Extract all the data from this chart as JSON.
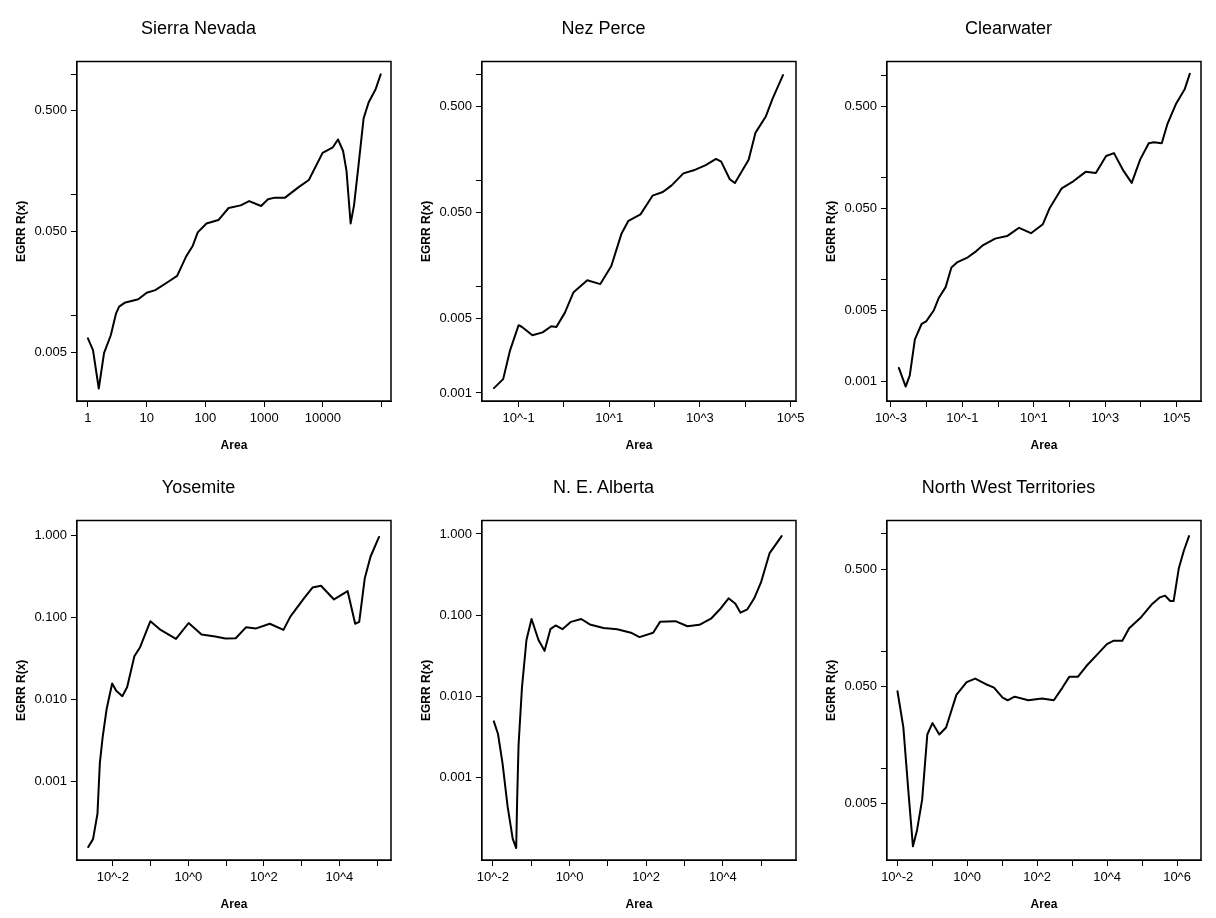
{
  "chart_data": [
    {
      "type": "line",
      "title": "Sierra Nevada",
      "xlabel": "Area",
      "ylabel": "EGRR R(x)",
      "log": "xy",
      "grid": false,
      "legend": false,
      "marker": "none",
      "xlim": [
        0.65,
        144000
      ],
      "ylim": [
        0.00197,
        1.27
      ],
      "xticks": [
        1,
        10,
        100,
        1000,
        10000,
        {
          "value": 100000,
          "label": null
        }
      ],
      "yticks": [
        {
          "value": 0.005,
          "label": "0.005"
        },
        {
          "value": 0.01,
          "label": null
        },
        {
          "value": 0.05,
          "label": "0.050"
        },
        {
          "value": 0.1,
          "label": null
        },
        {
          "value": 0.5,
          "label": "0.500"
        },
        {
          "value": 1,
          "label": null
        }
      ],
      "series": [
        {
          "color": "#000000",
          "x": [
            1.0,
            1.22,
            1.53,
            1.88,
            2.45,
            3.0,
            3.4,
            4.2,
            7.2,
            10,
            14,
            24,
            33,
            47,
            61,
            74,
            104,
            166,
            248,
            398,
            555,
            887,
            1160,
            1514,
            2265,
            3864,
            5754,
            9863,
            14750,
            18030,
            22030,
            25180,
            29580,
            33810,
            40270,
            49200,
            60100,
            78500,
            96100
          ],
          "values": [
            0.0065,
            0.0052,
            0.0025,
            0.0049,
            0.0069,
            0.0104,
            0.0119,
            0.0128,
            0.0137,
            0.0155,
            0.0163,
            0.0193,
            0.0214,
            0.031,
            0.038,
            0.049,
            0.058,
            0.062,
            0.078,
            0.082,
            0.089,
            0.081,
            0.092,
            0.095,
            0.095,
            0.116,
            0.133,
            0.223,
            0.248,
            0.288,
            0.231,
            0.158,
            0.058,
            0.082,
            0.175,
            0.43,
            0.586,
            0.746,
            0.996
          ]
        }
      ]
    },
    {
      "type": "line",
      "title": "Nez Perce",
      "xlabel": "Area",
      "ylabel": "EGRR R(x)",
      "log": "xy",
      "grid": false,
      "legend": false,
      "marker": "none",
      "xlim": [
        0.0155,
        132000
      ],
      "ylim": [
        0.00084,
        1.32
      ],
      "xticks": [
        {
          "value": 0.1,
          "label": "10^-1"
        },
        {
          "value": 1,
          "label": null
        },
        {
          "value": 10,
          "label": "10^1"
        },
        {
          "value": 100,
          "label": null
        },
        {
          "value": 1000,
          "label": "10^3"
        },
        {
          "value": 10000,
          "label": null
        },
        {
          "value": 100000,
          "label": "10^5"
        }
      ],
      "yticks": [
        {
          "value": 0.001,
          "label": "0.001"
        },
        {
          "value": 0.005,
          "label": "0.005"
        },
        {
          "value": 0.01,
          "label": null
        },
        {
          "value": 0.05,
          "label": "0.050"
        },
        {
          "value": 0.1,
          "label": null
        },
        {
          "value": 0.5,
          "label": "0.500"
        },
        {
          "value": 1,
          "label": null
        }
      ],
      "series": [
        {
          "color": "#000000",
          "x": [
            0.0285,
            0.0456,
            0.0647,
            0.1,
            0.119,
            0.201,
            0.339,
            0.525,
            0.681,
            1.05,
            1.63,
            3.27,
            6.35,
            11.1,
            18.7,
            26.5,
            48.9,
            90.2,
            152,
            235,
            432,
            731,
            1346,
            2270,
            2951,
            4560,
            5930,
            11900,
            16900,
            28500,
            40400,
            68100
          ],
          "values": [
            0.00111,
            0.00135,
            0.00252,
            0.00435,
            0.00418,
            0.00349,
            0.00372,
            0.00425,
            0.00418,
            0.00571,
            0.0089,
            0.0115,
            0.0106,
            0.0157,
            0.0318,
            0.0418,
            0.0481,
            0.0721,
            0.078,
            0.0897,
            0.117,
            0.125,
            0.14,
            0.16,
            0.151,
            0.103,
            0.0948,
            0.157,
            0.283,
            0.402,
            0.594,
            0.986
          ]
        }
      ]
    },
    {
      "type": "line",
      "title": "Clearwater",
      "xlabel": "Area",
      "ylabel": "EGRR R(x)",
      "log": "xy",
      "grid": false,
      "legend": false,
      "marker": "none",
      "xlim": [
        0.00077,
        479000
      ],
      "ylim": [
        0.00065,
        1.37
      ],
      "xticks": [
        {
          "value": 0.001,
          "label": "10^-3"
        },
        {
          "value": 0.01,
          "label": null
        },
        {
          "value": 0.1,
          "label": "10^-1"
        },
        {
          "value": 1,
          "label": null
        },
        {
          "value": 10,
          "label": "10^1"
        },
        {
          "value": 100,
          "label": null
        },
        {
          "value": 1000,
          "label": "10^3"
        },
        {
          "value": 10000,
          "label": null
        },
        {
          "value": 100000,
          "label": "10^5"
        }
      ],
      "yticks": [
        {
          "value": 0.001,
          "label": "0.001"
        },
        {
          "value": 0.005,
          "label": "0.005"
        },
        {
          "value": 0.01,
          "label": null
        },
        {
          "value": 0.05,
          "label": "0.050"
        },
        {
          "value": 0.1,
          "label": null
        },
        {
          "value": 0.5,
          "label": "0.500"
        },
        {
          "value": 1,
          "label": null
        }
      ],
      "series": [
        {
          "color": "#000000",
          "x": [
            0.00166,
            0.00258,
            0.00336,
            0.00467,
            0.00724,
            0.00966,
            0.0157,
            0.0218,
            0.0339,
            0.0492,
            0.0731,
            0.142,
            0.245,
            0.382,
            0.824,
            1.78,
            3.85,
            8.32,
            17.9,
            27.9,
            60.3,
            130,
            282,
            545,
            1054,
            1750,
            3170,
            5500,
            9530,
            16500,
            23000,
            38100,
            55500,
            96200,
            167000,
            232000
          ],
          "values": [
            0.00137,
            0.0009,
            0.00116,
            0.00261,
            0.00371,
            0.00392,
            0.005,
            0.00664,
            0.00847,
            0.0132,
            0.0149,
            0.0166,
            0.0191,
            0.0219,
            0.0253,
            0.0268,
            0.0323,
            0.0286,
            0.035,
            0.0505,
            0.0787,
            0.0927,
            0.114,
            0.111,
            0.163,
            0.174,
            0.118,
            0.0889,
            0.151,
            0.217,
            0.222,
            0.217,
            0.339,
            0.53,
            0.733,
            1.04
          ]
        }
      ]
    },
    {
      "type": "line",
      "title": "Yosemite",
      "xlabel": "Area",
      "ylabel": "EGRR R(x)",
      "log": "xy",
      "grid": false,
      "legend": false,
      "marker": "none",
      "xlim": [
        0.00112,
        234000
      ],
      "ylim": [
        0.000112,
        1.5
      ],
      "xticks": [
        {
          "value": 0.01,
          "label": "10^-2"
        },
        {
          "value": 0.1,
          "label": null
        },
        {
          "value": 1,
          "label": "10^0"
        },
        {
          "value": 10,
          "label": null
        },
        {
          "value": 100,
          "label": "10^2"
        },
        {
          "value": 1000,
          "label": null
        },
        {
          "value": 10000,
          "label": "10^4"
        },
        {
          "value": 100000,
          "label": null
        }
      ],
      "yticks": [
        {
          "value": 0.001,
          "label": "0.001"
        },
        {
          "value": 0.01,
          "label": "0.010"
        },
        {
          "value": 0.1,
          "label": "0.100"
        },
        {
          "value": 1,
          "label": "1.000"
        }
      ],
      "series": [
        {
          "color": "#000000",
          "x": [
            0.00223,
            0.00299,
            0.00392,
            0.00453,
            0.00536,
            0.00687,
            0.0096,
            0.0123,
            0.0179,
            0.024,
            0.0372,
            0.0528,
            0.0989,
            0.185,
            0.471,
            1.02,
            2.24,
            5.15,
            9.64,
            18,
            33.6,
            62.7,
            144,
            332,
            504,
            1156,
            1945,
            3273,
            7228,
            16630,
            26300,
            33700,
            47100,
            67000,
            112700
          ],
          "values": [
            0.000161,
            0.000201,
            0.000409,
            0.00169,
            0.00344,
            0.00773,
            0.0157,
            0.0128,
            0.011,
            0.0142,
            0.0336,
            0.0433,
            0.0897,
            0.0703,
            0.0546,
            0.0853,
            0.0617,
            0.0586,
            0.0552,
            0.0557,
            0.0755,
            0.0733,
            0.0836,
            0.0703,
            0.102,
            0.17,
            0.23,
            0.242,
            0.165,
            0.208,
            0.0836,
            0.0879,
            0.296,
            0.545,
            0.95
          ]
        }
      ]
    },
    {
      "type": "line",
      "title": "N. E. Alberta",
      "xlabel": "Area",
      "ylabel": "EGRR R(x)",
      "log": "xy",
      "grid": false,
      "legend": false,
      "marker": "none",
      "xlim": [
        0.00518,
        811000
      ],
      "ylim": [
        9.62e-05,
        1.46
      ],
      "xticks": [
        {
          "value": 0.01,
          "label": "10^-2"
        },
        {
          "value": 0.1,
          "label": null
        },
        {
          "value": 1,
          "label": "10^0"
        },
        {
          "value": 10,
          "label": null
        },
        {
          "value": 100,
          "label": "10^2"
        },
        {
          "value": 1000,
          "label": null
        },
        {
          "value": 10000,
          "label": "10^4"
        },
        {
          "value": 100000,
          "label": null
        }
      ],
      "yticks": [
        {
          "value": 0.001,
          "label": "0.001"
        },
        {
          "value": 0.01,
          "label": "0.010"
        },
        {
          "value": 0.1,
          "label": "0.100"
        },
        {
          "value": 1,
          "label": "1.000"
        }
      ],
      "series": [
        {
          "color": "#000000",
          "x": [
            0.0106,
            0.0136,
            0.0178,
            0.0242,
            0.033,
            0.0406,
            0.043,
            0.0468,
            0.0575,
            0.0752,
            0.102,
            0.155,
            0.223,
            0.317,
            0.432,
            0.652,
            1.09,
            2.02,
            3.38,
            7.71,
            17.5,
            40,
            66.8,
            152,
            230,
            579,
            1191,
            2449,
            5035,
            8414,
            14090,
            21280,
            28910,
            43650,
            65900,
            99540,
            166300,
            342000
          ],
          "values": [
            0.00491,
            0.00343,
            0.00151,
            0.00044,
            0.000175,
            0.000135,
            0.00054,
            0.00252,
            0.013,
            0.0494,
            0.0895,
            0.0494,
            0.0363,
            0.0671,
            0.0745,
            0.0671,
            0.0826,
            0.0895,
            0.0767,
            0.0693,
            0.0671,
            0.0607,
            0.0536,
            0.0607,
            0.0826,
            0.0843,
            0.0729,
            0.076,
            0.0914,
            0.118,
            0.161,
            0.138,
            0.107,
            0.118,
            0.161,
            0.255,
            0.581,
            0.94
          ]
        }
      ]
    },
    {
      "type": "line",
      "title": "North West Territories",
      "xlabel": "Area",
      "ylabel": "EGRR R(x)",
      "log": "xy",
      "grid": false,
      "legend": false,
      "marker": "none",
      "xlim": [
        0.00509,
        4840000
      ],
      "ylim": [
        0.00166,
        1.3
      ],
      "xticks": [
        {
          "value": 0.01,
          "label": "10^-2"
        },
        {
          "value": 0.1,
          "label": null
        },
        {
          "value": 1,
          "label": "10^0"
        },
        {
          "value": 10,
          "label": null
        },
        {
          "value": 100,
          "label": "10^2"
        },
        {
          "value": 1000,
          "label": null
        },
        {
          "value": 10000,
          "label": "10^4"
        },
        {
          "value": 100000,
          "label": null
        },
        {
          "value": 1000000,
          "label": "10^6"
        }
      ],
      "yticks": [
        {
          "value": 0.005,
          "label": "0.005"
        },
        {
          "value": 0.01,
          "label": null
        },
        {
          "value": 0.05,
          "label": "0.050"
        },
        {
          "value": 0.1,
          "label": null
        },
        {
          "value": 0.5,
          "label": "0.500"
        },
        {
          "value": 1,
          "label": null
        }
      ],
      "series": [
        {
          "color": "#000000",
          "x": [
            0.0102,
            0.015,
            0.021,
            0.0282,
            0.0369,
            0.0518,
            0.0726,
            0.102,
            0.16,
            0.25,
            0.492,
            0.966,
            1.7,
            3.33,
            5.86,
            10.3,
            14.4,
            22.6,
            55.7,
            137,
            301,
            530,
            830,
            1459,
            2559,
            5035,
            9886,
            15520,
            27230,
            42760,
            93970,
            184500,
            324300,
            455000,
            636800,
            798000,
            1119000,
            1570000,
            2198000
          ],
          "values": [
            0.0456,
            0.0224,
            0.00627,
            0.00217,
            0.00298,
            0.00545,
            0.0195,
            0.0244,
            0.0195,
            0.0224,
            0.0425,
            0.0545,
            0.0585,
            0.0526,
            0.049,
            0.0402,
            0.0382,
            0.041,
            0.0382,
            0.0396,
            0.0382,
            0.049,
            0.0605,
            0.0605,
            0.0748,
            0.0927,
            0.115,
            0.123,
            0.123,
            0.157,
            0.195,
            0.249,
            0.288,
            0.298,
            0.268,
            0.268,
            0.507,
            0.723,
            0.959
          ]
        }
      ]
    }
  ]
}
